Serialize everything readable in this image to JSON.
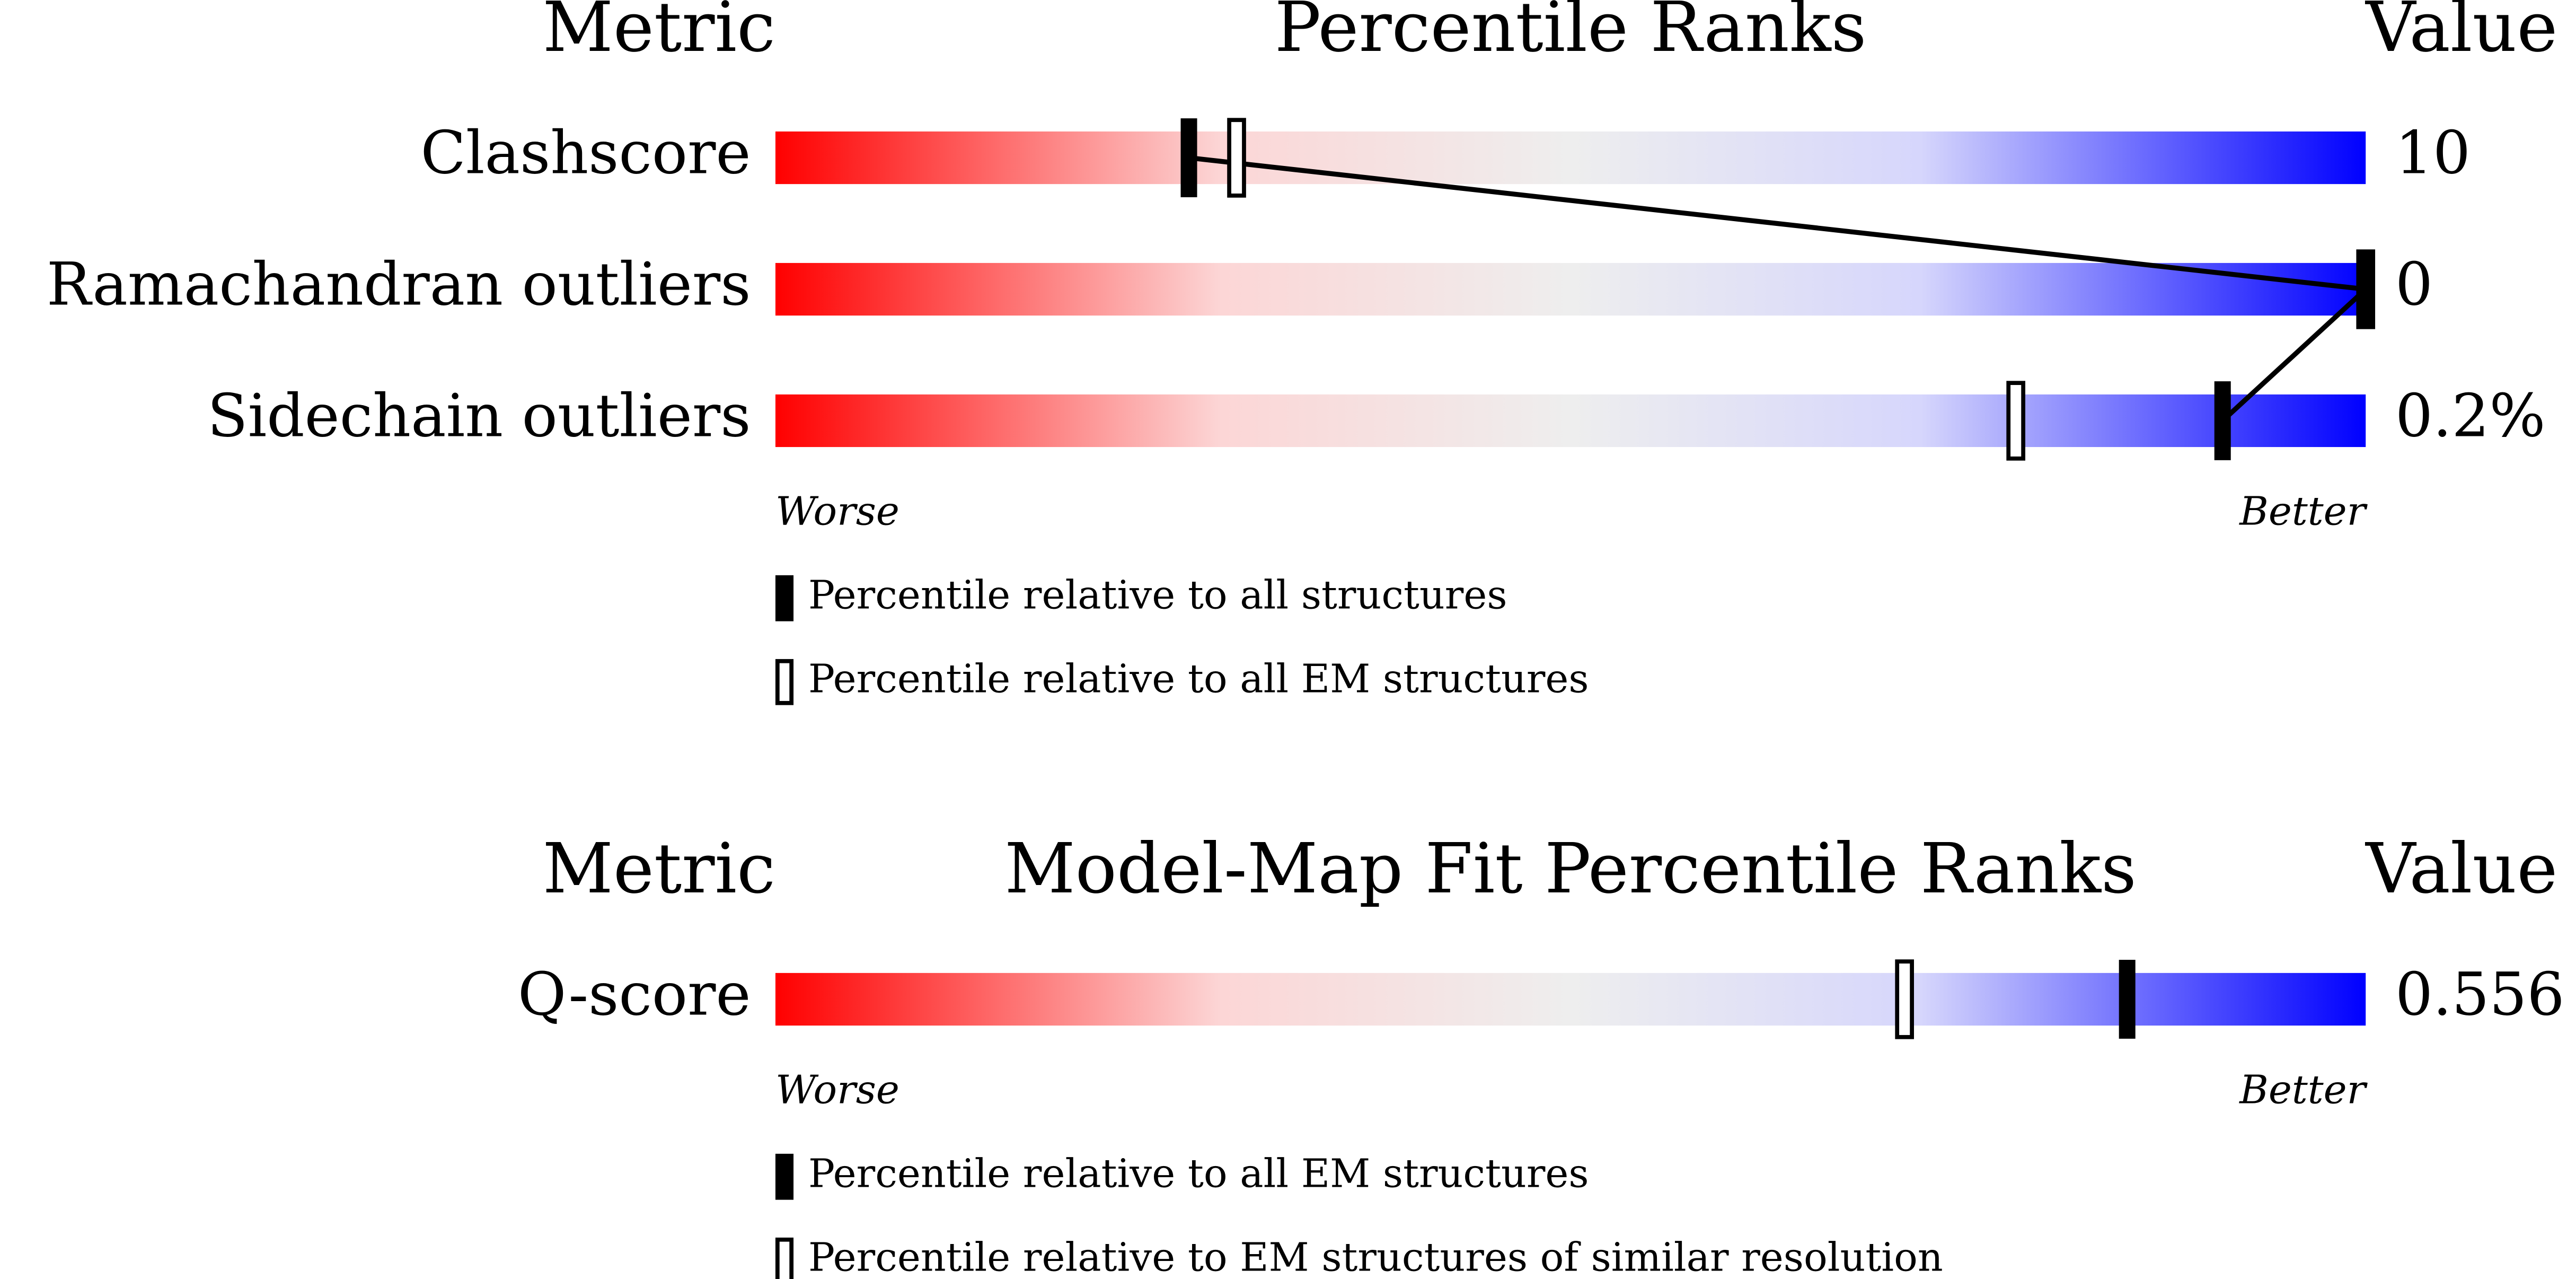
{
  "chart_data": [
    {
      "type": "percentile-slider",
      "metric_header": "Metric",
      "title": "Percentile Ranks",
      "value_header": "Value",
      "xlim": [
        0,
        100
      ],
      "categories": [
        "Clashscore",
        "Ramachandran outliers",
        "Sidechain outliers"
      ],
      "values": [
        10,
        0,
        0.2
      ],
      "value_labels": [
        "10",
        "0",
        "0.2%"
      ],
      "worse_label": "Worse",
      "better_label": "Better",
      "series": [
        {
          "name": "Percentile relative to all structures",
          "marker": "filled",
          "color": "#000000",
          "values": [
            26,
            100,
            91
          ]
        },
        {
          "name": "Percentile relative to all EM structures",
          "marker": "outline",
          "color": "#000000",
          "values": [
            29,
            100,
            78
          ]
        }
      ]
    },
    {
      "type": "percentile-slider",
      "metric_header": "Metric",
      "title": "Model-Map Fit Percentile Ranks",
      "value_header": "Value",
      "xlim": [
        0,
        100
      ],
      "categories": [
        "Q-score"
      ],
      "values": [
        0.556
      ],
      "worse_label": "Worse",
      "better_label": "Better",
      "series": [
        {
          "name": "Percentile relative to all EM structures",
          "marker": "filled",
          "color": "#000000",
          "values": [
            85
          ]
        },
        {
          "name": "Percentile relative to EM structures of similar resolution",
          "marker": "outline",
          "color": "#000000",
          "values": [
            71
          ]
        }
      ]
    }
  ]
}
